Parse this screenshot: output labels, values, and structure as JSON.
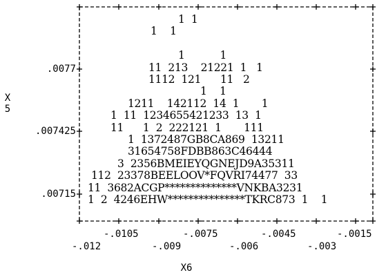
{
  "chart_data": {
    "type": "scatter",
    "subtype": "character-density-plot",
    "xlabel": "X6",
    "ylabel_lines": [
      "X",
      "5"
    ],
    "y_ticks": [
      ".0077",
      ".007425",
      ".00715"
    ],
    "x_ticks_upper": [
      "-.0105",
      "-.0075",
      "-.0045",
      "-.0015"
    ],
    "x_ticks_lower": [
      "-.012",
      "-.009",
      "-.006",
      "-.003"
    ],
    "grid": false,
    "rows": [
      "1  1",
      "1    1",
      "",
      "1           1",
      "11  213    21221  1   1",
      "1112  121      11   2",
      "1    1",
      "1211    142112  14  1       1",
      "1  11  1234655421233  13  1",
      "11      1  2  222121  1       111",
      "1  1372487GB8CA869  13211",
      "31654758FDBB863C46444",
      "3  2356BMEIEYQGNEJD9A35311",
      "112  23378BEELOOV*FQVRI74477  33",
      "11  3682ACGP**************VNKBA3231",
      "1  2  4246EHW***************TKRC873  1    1"
    ]
  }
}
